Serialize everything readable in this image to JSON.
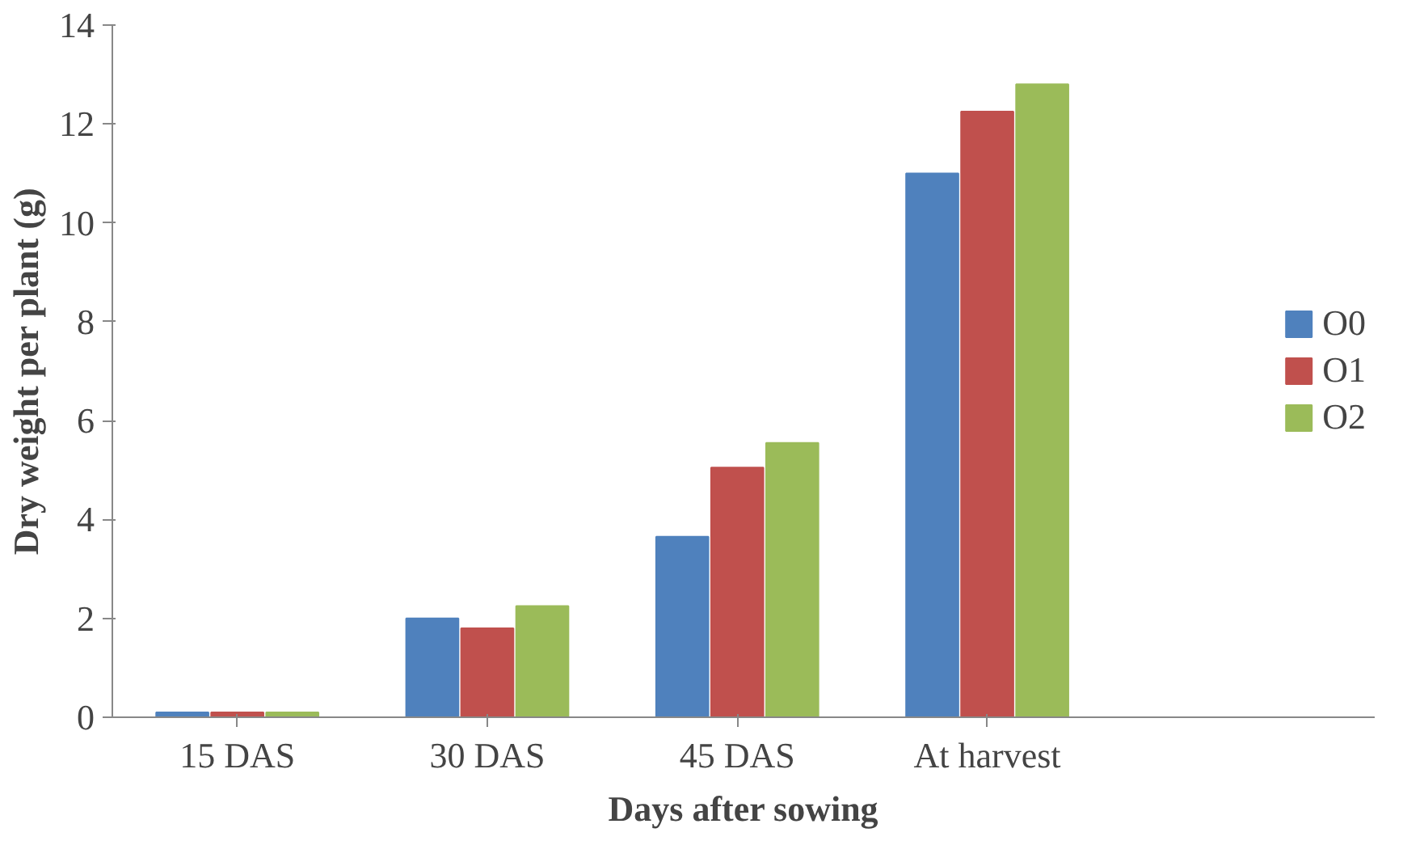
{
  "chart_data": {
    "type": "bar",
    "xlabel": "Days after sowing",
    "ylabel": "Dry weight per plant (g)",
    "categories": [
      "15 DAS",
      "30 DAS",
      "45 DAS",
      "At harvest"
    ],
    "series": [
      {
        "name": "O0",
        "color": "#4f81bd",
        "values": [
          0.1,
          2.0,
          3.65,
          11.0
        ]
      },
      {
        "name": "O1",
        "color": "#c0504d",
        "values": [
          0.1,
          1.8,
          5.05,
          12.25
        ]
      },
      {
        "name": "O2",
        "color": "#9bbb59",
        "values": [
          0.1,
          2.25,
          5.55,
          12.8
        ]
      }
    ],
    "ylim": [
      0,
      14
    ],
    "yticks": [
      0,
      2,
      4,
      6,
      8,
      10,
      12,
      14
    ],
    "grid": false,
    "legend": "right"
  }
}
